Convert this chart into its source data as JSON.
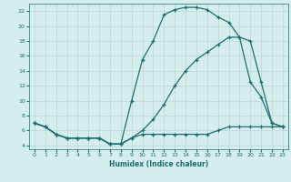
{
  "xlabel": "Humidex (Indice chaleur)",
  "bg_color": "#d6edee",
  "grid_color": "#c0d8d8",
  "line_color": "#1a7070",
  "xlim": [
    -0.5,
    23.5
  ],
  "ylim": [
    3.5,
    23
  ],
  "yticks": [
    4,
    6,
    8,
    10,
    12,
    14,
    16,
    18,
    20,
    22
  ],
  "xticks": [
    0,
    1,
    2,
    3,
    4,
    5,
    6,
    7,
    8,
    9,
    10,
    11,
    12,
    13,
    14,
    15,
    16,
    17,
    18,
    19,
    20,
    21,
    22,
    23
  ],
  "curve_top_x": [
    0,
    1,
    2,
    3,
    4,
    5,
    6,
    7,
    8,
    9,
    10,
    11,
    12,
    13,
    14,
    15,
    16,
    17,
    18,
    19,
    20,
    21,
    22,
    23
  ],
  "curve_top_y": [
    7,
    6.5,
    5.5,
    5,
    5,
    5,
    5,
    4.2,
    4.2,
    10,
    15.5,
    18,
    21.5,
    22.2,
    22.5,
    22.5,
    22.2,
    21.2,
    20.5,
    18.5,
    12.5,
    10.5,
    7,
    6.5
  ],
  "curve_mid_x": [
    0,
    1,
    2,
    3,
    4,
    5,
    6,
    7,
    8,
    9,
    10,
    11,
    12,
    13,
    14,
    15,
    16,
    17,
    18,
    19,
    20,
    21,
    22,
    23
  ],
  "curve_mid_y": [
    7,
    6.5,
    5.5,
    5,
    5,
    5,
    5,
    4.2,
    4.2,
    5,
    6,
    7.5,
    9.5,
    12,
    14,
    15.5,
    16.5,
    17.5,
    18.5,
    18.5,
    18,
    12.5,
    7,
    6.5
  ],
  "curve_bot_x": [
    0,
    1,
    2,
    3,
    4,
    5,
    6,
    7,
    8,
    9,
    10,
    11,
    12,
    13,
    14,
    15,
    16,
    17,
    18,
    19,
    20,
    21,
    22,
    23
  ],
  "curve_bot_y": [
    7,
    6.5,
    5.5,
    5,
    5,
    5,
    5,
    4.2,
    4.2,
    5,
    5.5,
    5.5,
    5.5,
    5.5,
    5.5,
    5.5,
    5.5,
    6,
    6.5,
    6.5,
    6.5,
    6.5,
    6.5,
    6.5
  ]
}
